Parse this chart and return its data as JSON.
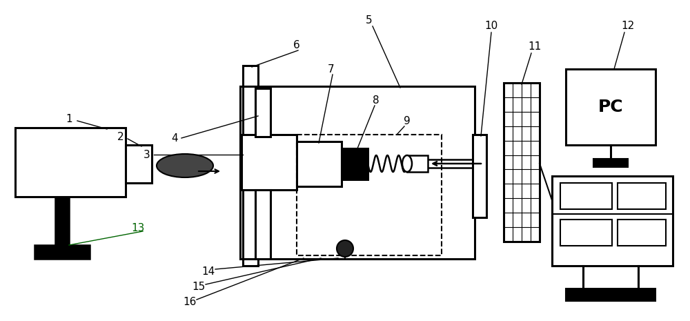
{
  "figsize": [
    10.0,
    4.65
  ],
  "dpi": 100,
  "bg_color": "white",
  "lw": 1.8,
  "lw_thick": 2.2
}
